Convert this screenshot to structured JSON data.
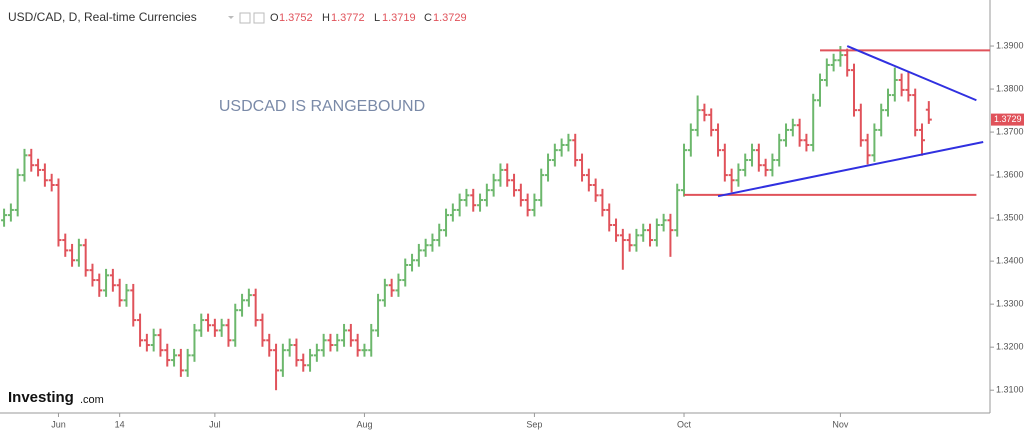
{
  "chart_data": {
    "type": "ohlc",
    "title": "USD/CAD, D, Real-time Currencies",
    "ohlc_labels": [
      "O",
      "H",
      "L",
      "C"
    ],
    "annotation": "USDCAD IS RANGEBOUND",
    "brand": "Investing",
    "brand_suffix": ".com",
    "grid": false,
    "xlim": [
      -0.6,
      145
    ],
    "xticks": [
      {
        "value": 8,
        "label": "Jun"
      },
      {
        "value": 17,
        "label": "14"
      },
      {
        "value": 31,
        "label": "Jul"
      },
      {
        "value": 53,
        "label": "Aug"
      },
      {
        "value": 78,
        "label": "Sep"
      },
      {
        "value": 100,
        "label": "Oct"
      },
      {
        "value": 123,
        "label": "Nov"
      }
    ],
    "ylim": [
      1.3047,
      1.4007
    ],
    "yticks": [
      {
        "value": 1.31,
        "label": "1.3100"
      },
      {
        "value": 1.32,
        "label": "1.3200"
      },
      {
        "value": 1.33,
        "label": "1.3300"
      },
      {
        "value": 1.34,
        "label": "1.3400"
      },
      {
        "value": 1.35,
        "label": "1.3500"
      },
      {
        "value": 1.36,
        "label": "1.3600"
      },
      {
        "value": 1.37,
        "label": "1.3700"
      },
      {
        "value": 1.38,
        "label": "1.3800"
      },
      {
        "value": 1.39,
        "label": "1.3900"
      }
    ],
    "series": [
      {
        "up_color": "#6cb76c",
        "down_color": "#e0525a",
        "open": [
          1.3495,
          1.3507,
          1.3519,
          1.36,
          1.3646,
          1.3623,
          1.3612,
          1.3588,
          1.3577,
          1.3449,
          1.3425,
          1.3402,
          1.3437,
          1.3379,
          1.3356,
          1.3332,
          1.3367,
          1.3344,
          1.3309,
          1.3332,
          1.3263,
          1.3216,
          1.3205,
          1.3228,
          1.3193,
          1.317,
          1.3181,
          1.3146,
          1.3181,
          1.3239,
          1.3263,
          1.3251,
          1.3239,
          1.3251,
          1.3216,
          1.3286,
          1.3309,
          1.3321,
          1.3263,
          1.3216,
          1.3193,
          1.3146,
          1.3193,
          1.3205,
          1.317,
          1.3158,
          1.3181,
          1.3193,
          1.3216,
          1.3205,
          1.3216,
          1.3239,
          1.3216,
          1.3193,
          1.3193,
          1.3239,
          1.3309,
          1.3344,
          1.3332,
          1.3356,
          1.3391,
          1.3402,
          1.3425,
          1.3437,
          1.3449,
          1.3472,
          1.3507,
          1.3519,
          1.3542,
          1.3553,
          1.353,
          1.3542,
          1.3565,
          1.3588,
          1.3612,
          1.3588,
          1.3565,
          1.3542,
          1.3519,
          1.3542,
          1.36,
          1.3635,
          1.3658,
          1.367,
          1.3681,
          1.3635,
          1.36,
          1.3577,
          1.3553,
          1.3519,
          1.3484,
          1.346,
          1.3449,
          1.3437,
          1.346,
          1.3472,
          1.3449,
          1.3484,
          1.3495,
          1.3472,
          1.3565,
          1.3658,
          1.3705,
          1.3751,
          1.374,
          1.3705,
          1.3658,
          1.36,
          1.3588,
          1.3612,
          1.3635,
          1.3658,
          1.3623,
          1.3612,
          1.3635,
          1.3681,
          1.3705,
          1.3716,
          1.3681,
          1.367,
          1.3774,
          1.3821,
          1.3856,
          1.3867,
          1.3879,
          1.3844,
          1.3751,
          1.3681,
          1.3646,
          1.3705,
          1.3751,
          1.3786,
          1.3821,
          1.3798,
          1.3786,
          1.3705,
          1.3752
        ],
        "high": [
          1.3522,
          1.3534,
          1.3615,
          1.3661,
          1.3661,
          1.3638,
          1.3627,
          1.3603,
          1.3592,
          1.3464,
          1.344,
          1.3452,
          1.3452,
          1.3394,
          1.3371,
          1.3382,
          1.3382,
          1.3359,
          1.3347,
          1.3347,
          1.3278,
          1.3231,
          1.3243,
          1.3243,
          1.3208,
          1.3196,
          1.3196,
          1.3196,
          1.3254,
          1.3278,
          1.3278,
          1.3266,
          1.3266,
          1.3266,
          1.3301,
          1.3324,
          1.3336,
          1.3336,
          1.3278,
          1.3231,
          1.3208,
          1.3208,
          1.322,
          1.322,
          1.3185,
          1.3196,
          1.3208,
          1.3231,
          1.3231,
          1.3231,
          1.3254,
          1.3254,
          1.3231,
          1.3208,
          1.3254,
          1.3324,
          1.3359,
          1.3359,
          1.3371,
          1.3406,
          1.3417,
          1.344,
          1.3452,
          1.3464,
          1.3487,
          1.3522,
          1.3534,
          1.3557,
          1.3568,
          1.3568,
          1.3557,
          1.358,
          1.3603,
          1.3627,
          1.3627,
          1.3603,
          1.358,
          1.3557,
          1.3557,
          1.3615,
          1.365,
          1.3673,
          1.3685,
          1.3696,
          1.3696,
          1.365,
          1.3615,
          1.3592,
          1.3568,
          1.3534,
          1.3499,
          1.3475,
          1.3464,
          1.3475,
          1.3487,
          1.3487,
          1.3499,
          1.351,
          1.351,
          1.358,
          1.3673,
          1.372,
          1.3785,
          1.3766,
          1.3755,
          1.372,
          1.3673,
          1.3615,
          1.3627,
          1.365,
          1.3673,
          1.3673,
          1.3638,
          1.365,
          1.3696,
          1.372,
          1.3731,
          1.3731,
          1.3696,
          1.3789,
          1.3836,
          1.3871,
          1.3882,
          1.39,
          1.3894,
          1.3859,
          1.3766,
          1.3696,
          1.372,
          1.3766,
          1.3801,
          1.385,
          1.3836,
          1.384,
          1.3801,
          1.372,
          1.3772
        ],
        "low": [
          1.348,
          1.3492,
          1.3504,
          1.3585,
          1.3608,
          1.3597,
          1.3573,
          1.3562,
          1.3434,
          1.341,
          1.3387,
          1.3387,
          1.3364,
          1.3341,
          1.3317,
          1.3317,
          1.3329,
          1.3294,
          1.3294,
          1.3248,
          1.3201,
          1.319,
          1.319,
          1.3178,
          1.3155,
          1.3155,
          1.3131,
          1.3131,
          1.3166,
          1.3224,
          1.3236,
          1.3224,
          1.3224,
          1.3201,
          1.3201,
          1.3271,
          1.3294,
          1.3248,
          1.3201,
          1.3178,
          1.31,
          1.3131,
          1.3178,
          1.3155,
          1.3143,
          1.3143,
          1.3166,
          1.3178,
          1.319,
          1.319,
          1.3201,
          1.3201,
          1.3178,
          1.3178,
          1.3178,
          1.3224,
          1.3294,
          1.3317,
          1.3317,
          1.3341,
          1.3376,
          1.3387,
          1.341,
          1.3422,
          1.3434,
          1.3457,
          1.3492,
          1.3504,
          1.3527,
          1.3515,
          1.3515,
          1.3527,
          1.355,
          1.3573,
          1.3573,
          1.355,
          1.3527,
          1.3504,
          1.3504,
          1.3527,
          1.3585,
          1.362,
          1.3643,
          1.3655,
          1.362,
          1.3585,
          1.3562,
          1.3538,
          1.3504,
          1.3469,
          1.3445,
          1.338,
          1.3422,
          1.3422,
          1.3445,
          1.3434,
          1.3434,
          1.3469,
          1.341,
          1.3457,
          1.355,
          1.3643,
          1.369,
          1.3725,
          1.369,
          1.3643,
          1.3585,
          1.356,
          1.3573,
          1.3597,
          1.362,
          1.3608,
          1.3597,
          1.3597,
          1.362,
          1.3666,
          1.369,
          1.3666,
          1.3655,
          1.3655,
          1.3759,
          1.3806,
          1.3841,
          1.3852,
          1.3829,
          1.3736,
          1.3666,
          1.3625,
          1.3631,
          1.369,
          1.3736,
          1.3771,
          1.3783,
          1.3771,
          1.369,
          1.3645,
          1.3719
        ],
        "close": [
          1.3507,
          1.3519,
          1.36,
          1.3646,
          1.3623,
          1.3612,
          1.3588,
          1.3577,
          1.3449,
          1.3425,
          1.3402,
          1.3437,
          1.3379,
          1.3356,
          1.3332,
          1.3367,
          1.3344,
          1.3309,
          1.3332,
          1.3263,
          1.3216,
          1.3205,
          1.3228,
          1.3193,
          1.317,
          1.3181,
          1.3146,
          1.3181,
          1.3239,
          1.3263,
          1.3251,
          1.3239,
          1.3251,
          1.3216,
          1.3286,
          1.3309,
          1.3321,
          1.3263,
          1.3216,
          1.3193,
          1.3146,
          1.3193,
          1.3205,
          1.317,
          1.3158,
          1.3181,
          1.3193,
          1.3216,
          1.3205,
          1.3216,
          1.3239,
          1.3216,
          1.3193,
          1.3193,
          1.3239,
          1.3309,
          1.3344,
          1.3332,
          1.3356,
          1.3391,
          1.3402,
          1.3425,
          1.3437,
          1.3449,
          1.3472,
          1.3507,
          1.3519,
          1.3542,
          1.3553,
          1.353,
          1.3542,
          1.3565,
          1.3588,
          1.3612,
          1.3588,
          1.3565,
          1.3542,
          1.3519,
          1.3542,
          1.36,
          1.3635,
          1.3658,
          1.367,
          1.3681,
          1.3635,
          1.36,
          1.3577,
          1.3553,
          1.3519,
          1.3484,
          1.346,
          1.3449,
          1.3437,
          1.346,
          1.3472,
          1.3449,
          1.3484,
          1.3495,
          1.3472,
          1.3565,
          1.3658,
          1.3705,
          1.3751,
          1.374,
          1.3705,
          1.3658,
          1.36,
          1.3588,
          1.3612,
          1.3635,
          1.3658,
          1.3623,
          1.3612,
          1.3635,
          1.3681,
          1.3705,
          1.3716,
          1.3681,
          1.367,
          1.3774,
          1.3821,
          1.3856,
          1.3867,
          1.3879,
          1.3844,
          1.3751,
          1.3681,
          1.3646,
          1.3705,
          1.3751,
          1.3786,
          1.3821,
          1.3798,
          1.3786,
          1.3705,
          1.3681,
          1.3729
        ]
      }
    ],
    "trendlines": [
      {
        "color": "#e0525a",
        "points": [
          [
            120,
            1.389
          ],
          [
            145,
            1.389
          ]
        ]
      },
      {
        "color": "#e0525a",
        "points": [
          [
            100,
            1.3554
          ],
          [
            143,
            1.3554
          ]
        ]
      },
      {
        "color": "#3030e0",
        "points": [
          [
            124,
            1.39
          ],
          [
            143,
            1.3774
          ]
        ]
      },
      {
        "color": "#3030e0",
        "points": [
          [
            105,
            1.3551
          ],
          [
            144,
            1.3677
          ]
        ]
      }
    ]
  }
}
